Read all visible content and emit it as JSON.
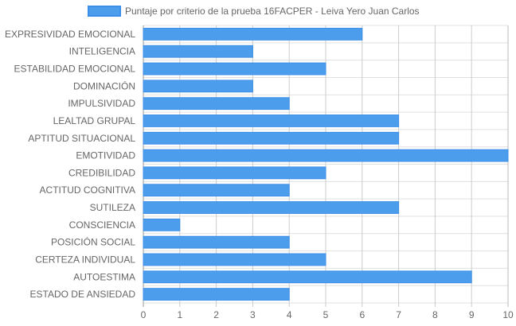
{
  "chart_data": {
    "type": "bar",
    "orientation": "horizontal",
    "categories": [
      "EXPRESIVIDAD EMOCIONAL",
      "INTELIGENCIA",
      "ESTABILIDAD EMOCIONAL",
      "DOMINACIÓN",
      "IMPULSIVIDAD",
      "LEALTAD GRUPAL",
      "APTITUD SITUACIONAL",
      "EMOTIVIDAD",
      "CREDIBILIDAD",
      "ACTITUD COGNITIVA",
      "SUTILEZA",
      "CONSCIENCIA",
      "POSICIÓN SOCIAL",
      "CERTEZA INDIVIDUAL",
      "AUTOESTIMA",
      "ESTADO DE ANSIEDAD"
    ],
    "series": [
      {
        "name": "Puntaje por criterio de la prueba 16FACPER - Leiva Yero Juan Carlos",
        "values": [
          6,
          3,
          5,
          3,
          4,
          7,
          7,
          10,
          5,
          4,
          7,
          1,
          4,
          5,
          9,
          4
        ]
      }
    ],
    "x_ticks": [
      "0",
      "1",
      "2",
      "3",
      "4",
      "5",
      "6",
      "7",
      "8",
      "9",
      "10"
    ],
    "xlim": [
      0,
      10
    ],
    "grid": true,
    "legend": "top-center",
    "colors": {
      "bar_fill": "#4c9deb",
      "bar_stroke": "#3c8fe8",
      "grid": "#e0e0e0",
      "axis": "#999999"
    }
  }
}
